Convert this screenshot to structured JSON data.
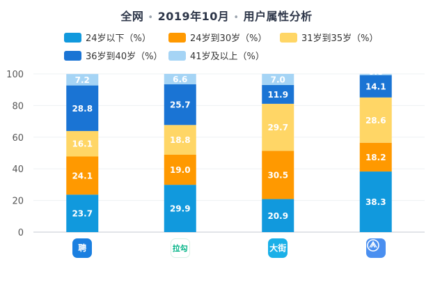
{
  "title": {
    "region": "全网",
    "period": "2019年10月",
    "subject": "用户属性分析"
  },
  "colors": {
    "s0": "#1199dd",
    "s1": "#ff9900",
    "s2": "#ffd666",
    "s3": "#1a74d4",
    "s4": "#a5d4f5"
  },
  "apps": [
    {
      "icon": "zhaopin-app-icon",
      "text": "聘",
      "bg": "#1a7fe0"
    },
    {
      "icon": "lagou-app-icon",
      "text": "拉勾",
      "bg": "#ffffff"
    },
    {
      "icon": "dajie-app-icon",
      "text": "大街",
      "bg": "#1ab0e8"
    },
    {
      "icon": "shell-app-icon",
      "text": "",
      "bg": "#4a8ff0"
    }
  ],
  "chart_data": {
    "type": "bar",
    "stacked": true,
    "categories": [
      "聘",
      "拉勾",
      "大街",
      ""
    ],
    "ylim": [
      0,
      100
    ],
    "yticks": [
      "0",
      "20",
      "40",
      "60",
      "80",
      "100"
    ],
    "series": [
      {
        "name": "24岁以下（%）",
        "values": [
          23.7,
          29.9,
          20.9,
          38.3
        ],
        "labels": [
          "23.7",
          "29.9",
          "20.9",
          "38.3"
        ]
      },
      {
        "name": "24岁到30岁（%）",
        "values": [
          24.1,
          19.0,
          30.5,
          18.2
        ],
        "labels": [
          "24.1",
          "19.0",
          "30.5",
          "18.2"
        ]
      },
      {
        "name": "31岁到35岁（%）",
        "values": [
          16.1,
          18.8,
          29.7,
          28.6
        ],
        "labels": [
          "16.1",
          "18.8",
          "29.7",
          "28.6"
        ]
      },
      {
        "name": "36岁到40岁（%）",
        "values": [
          28.8,
          25.7,
          11.9,
          14.1
        ],
        "labels": [
          "28.8",
          "25.7",
          "11.9",
          "14.1"
        ]
      },
      {
        "name": "41岁及以上（%）",
        "values": [
          7.2,
          6.6,
          7.0,
          0.8
        ],
        "labels": [
          "7.2",
          "6.6",
          "7.0",
          "0.8"
        ]
      }
    ],
    "legend_position": "top",
    "grid": true
  }
}
